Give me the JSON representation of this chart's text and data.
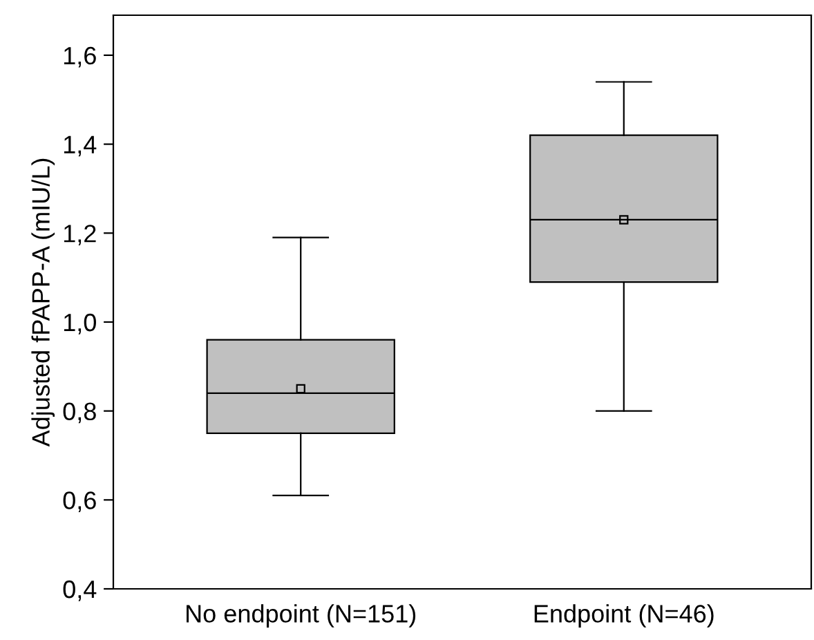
{
  "chart_data": {
    "type": "box",
    "ylabel": "Adjusted fPAPP-A (mIU/L)",
    "categories": [
      "No endpoint (N=151)",
      "Endpoint (N=46)"
    ],
    "boxes": [
      {
        "low": 0.61,
        "q1": 0.75,
        "median": 0.84,
        "q3": 0.96,
        "high": 1.19,
        "mean": 0.85
      },
      {
        "low": 0.8,
        "q1": 1.09,
        "median": 1.23,
        "q3": 1.42,
        "high": 1.54,
        "mean": 1.23
      }
    ],
    "color": "#c0c0c0",
    "ylim": [
      0.4,
      1.69
    ],
    "yticks": [
      {
        "value": 0.4,
        "label": "0,4"
      },
      {
        "value": 0.6,
        "label": "0,6"
      },
      {
        "value": 0.8,
        "label": "0,8"
      },
      {
        "value": 1.0,
        "label": "1,0"
      },
      {
        "value": 1.2,
        "label": "1,2"
      },
      {
        "value": 1.4,
        "label": "1,4"
      },
      {
        "value": 1.6,
        "label": "1,6"
      }
    ],
    "grid": false,
    "legend": false
  }
}
